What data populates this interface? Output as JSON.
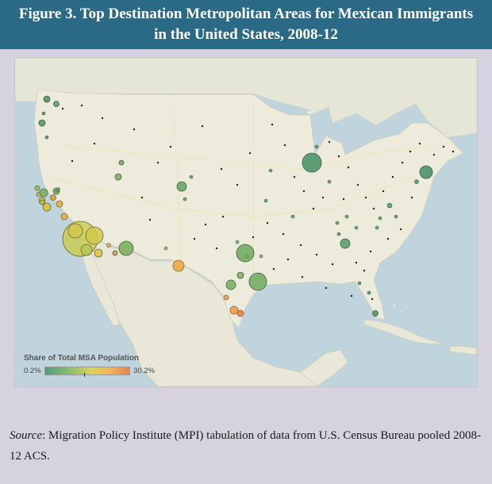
{
  "header": {
    "title": "Figure 3. Top Destination Metropolitan Areas for Mexican Immigrants in the United States, 2008-12"
  },
  "legend": {
    "title": "Share of Total MSA Population",
    "min_label": "0.2%",
    "max_label": "30.2%",
    "colors": [
      "#4e9d7b",
      "#8fbf6e",
      "#d8d35a",
      "#f0b454",
      "#e8805a"
    ]
  },
  "source": {
    "label": "Source",
    "text": ": Migration Policy Institute (MPI) tabulation of data from U.S. Census Bureau pooled 2008-12 ACS."
  },
  "colors": {
    "header_bg": "#2b6a86",
    "land": "#ecebdc",
    "water": "#bfd4dc",
    "page_bg": "#d6d2e0"
  }
}
